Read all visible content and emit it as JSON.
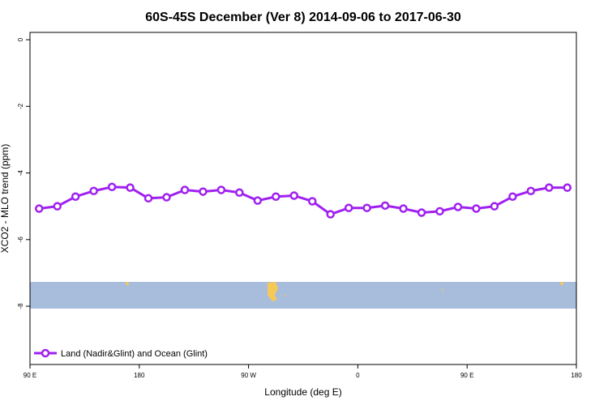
{
  "chart_data": {
    "type": "line",
    "title": "60S-45S December (Ver 8)   2014-09-06 to 2017-06-30",
    "x_label": "Longitude (deg E)",
    "y_label": "XCO2 - MLO trend (ppm)",
    "x": [
      97.5,
      112.5,
      127.5,
      142.5,
      157.5,
      172.5,
      187.5,
      202.5,
      217.5,
      232.5,
      247.5,
      262.5,
      277.5,
      292.5,
      307.5,
      322.5,
      337.5,
      352.5,
      367.5,
      382.5,
      397.5,
      412.5,
      427.5,
      442.5,
      457.5,
      472.5,
      487.5,
      502.5,
      517.5,
      532.5
    ],
    "series": [
      {
        "name": "Land (Nadir&Glint) and Ocean (Glint)",
        "color": "#a020f0",
        "values": [
          -5.07,
          -5.0,
          -4.71,
          -4.54,
          -4.42,
          -4.44,
          -4.76,
          -4.73,
          -4.51,
          -4.56,
          -4.51,
          -4.59,
          -4.83,
          -4.71,
          -4.68,
          -4.85,
          -5.24,
          -5.05,
          -5.05,
          -4.98,
          -5.07,
          -5.19,
          -5.15,
          -5.02,
          -5.07,
          -5.0,
          -4.71,
          -4.54,
          -4.44,
          -4.44
        ]
      }
    ],
    "xlim": [
      90,
      540
    ],
    "xticks": [
      {
        "value": 90,
        "label": "90 E"
      },
      180,
      {
        "value": 270,
        "label": "90 W"
      },
      {
        "value": 360,
        "label": "0"
      },
      {
        "value": 450,
        "label": "90 E"
      },
      {
        "value": 540,
        "label": "180"
      }
    ],
    "ylim": [
      -9.75,
      0.22
    ],
    "yticks": [
      0,
      -2,
      -4,
      -6,
      -8
    ],
    "legend_position": "bottom-left"
  }
}
